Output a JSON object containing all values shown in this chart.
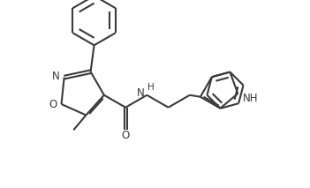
{
  "background_color": "#ffffff",
  "line_color": "#3a3a3a",
  "line_width": 1.5,
  "font_size": 8.5,
  "fig_width": 3.51,
  "fig_height": 2.13,
  "dpi": 100,
  "xlim": [
    0,
    3.51
  ],
  "ylim": [
    0,
    2.13
  ]
}
